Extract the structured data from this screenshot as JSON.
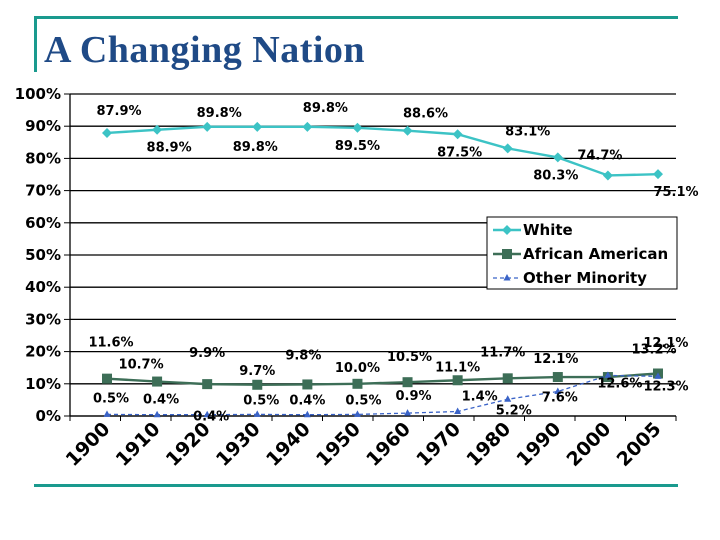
{
  "slide": {
    "title": "A Changing Nation"
  },
  "chart_data": {
    "type": "line",
    "categories": [
      "1900",
      "1910",
      "1920",
      "1930",
      "1940",
      "1950",
      "1960",
      "1970",
      "1980",
      "1990",
      "2000",
      "2005"
    ],
    "y_ticks": [
      "0%",
      "10%",
      "20%",
      "30%",
      "40%",
      "50%",
      "60%",
      "70%",
      "80%",
      "90%",
      "100%"
    ],
    "ylim": [
      0,
      100
    ],
    "grid": "horizontal",
    "legend_position": "right",
    "series": [
      {
        "name": "White",
        "values": [
          87.9,
          88.9,
          89.8,
          89.8,
          89.8,
          89.5,
          88.6,
          87.5,
          83.1,
          80.3,
          74.7,
          75.1
        ],
        "labels": [
          "87.9%",
          "88.9%",
          "89.8%",
          "89.8%",
          "89.8%",
          "89.5%",
          "88.6%",
          "87.5%",
          "83.1%",
          "80.3%",
          "74.7%",
          "75.1%"
        ],
        "color": "#3cc3c5",
        "marker": "diamond"
      },
      {
        "name": "African American",
        "values": [
          11.6,
          10.7,
          9.9,
          9.7,
          9.8,
          10.0,
          10.5,
          11.1,
          11.7,
          12.1,
          12.1,
          13.2
        ],
        "labels": [
          "11.6%",
          "10.7%",
          "9.9%",
          "9.7%",
          "9.8%",
          "10.0%",
          "10.5%",
          "11.1%",
          "11.7%",
          "12.1%",
          "12.1%",
          "13.2%"
        ],
        "color": "#3d6e57",
        "marker": "square"
      },
      {
        "name": "Other Minority",
        "values": [
          0.5,
          0.4,
          0.4,
          0.5,
          0.4,
          0.5,
          0.9,
          1.4,
          5.2,
          7.6,
          12.6,
          12.3
        ],
        "labels": [
          "0.5%",
          "0.4%",
          "0.4%",
          "0.5%",
          "0.4%",
          "0.5%",
          "0.9%",
          "1.4%",
          "5.2%",
          "7.6%",
          "12.6%",
          "12.3%"
        ],
        "color": "#3a63c7",
        "marker": "triangle"
      }
    ]
  }
}
